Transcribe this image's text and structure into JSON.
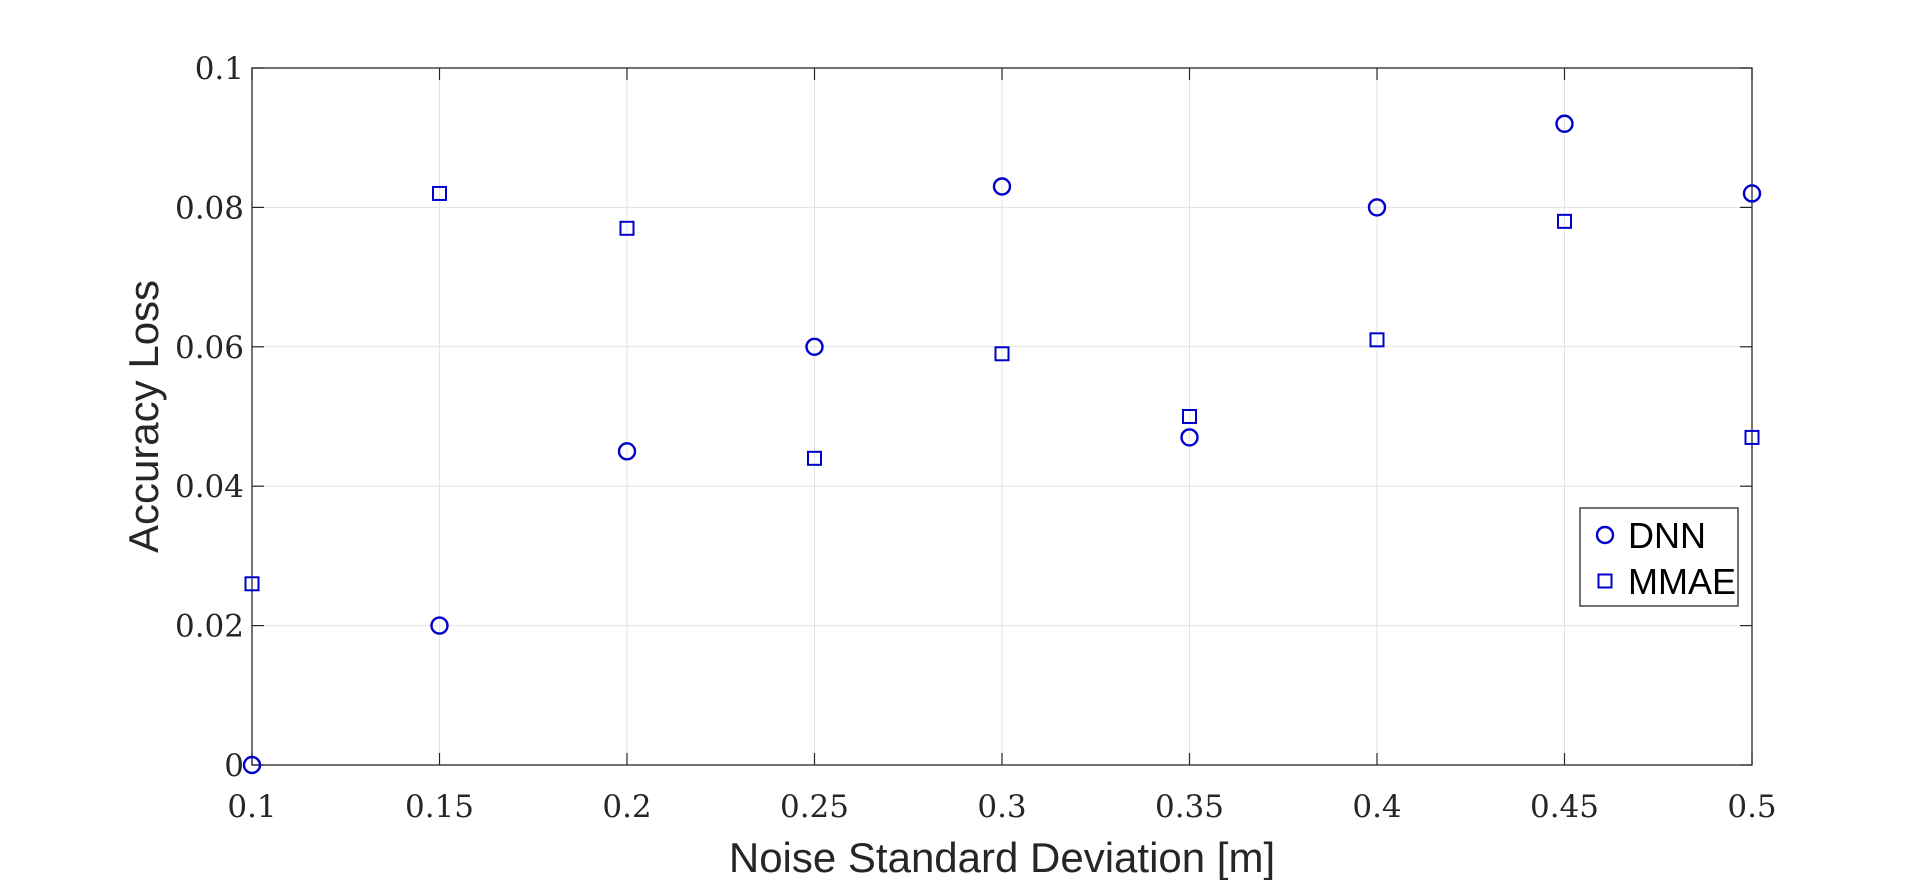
{
  "chart_data": {
    "type": "scatter",
    "xlabel": "Noise Standard Deviation [m]",
    "ylabel": "Accuracy Loss",
    "xlim": [
      0.1,
      0.5
    ],
    "ylim": [
      0,
      0.1
    ],
    "x_ticks": [
      0.1,
      0.15,
      0.2,
      0.25,
      0.3,
      0.35,
      0.4,
      0.45,
      0.5
    ],
    "x_tick_labels": [
      "0.1",
      "0.15",
      "0.2",
      "0.25",
      "0.3",
      "0.35",
      "0.4",
      "0.45",
      "0.5"
    ],
    "y_ticks": [
      0,
      0.02,
      0.04,
      0.06,
      0.08,
      0.1
    ],
    "y_tick_labels": [
      "0",
      "0.02",
      "0.04",
      "0.06",
      "0.08",
      "0.1"
    ],
    "grid": true,
    "legend_position": "right",
    "series": [
      {
        "name": "DNN",
        "marker": "circle",
        "color": "#0000cc",
        "x": [
          0.1,
          0.15,
          0.2,
          0.25,
          0.3,
          0.35,
          0.4,
          0.45,
          0.5
        ],
        "y": [
          0.0,
          0.02,
          0.045,
          0.06,
          0.083,
          0.047,
          0.08,
          0.092,
          0.082
        ]
      },
      {
        "name": "MMAE",
        "marker": "square",
        "color": "#0000cc",
        "x": [
          0.1,
          0.15,
          0.2,
          0.25,
          0.3,
          0.35,
          0.4,
          0.45,
          0.5
        ],
        "y": [
          0.026,
          0.082,
          0.077,
          0.044,
          0.059,
          0.05,
          0.061,
          0.078,
          0.047
        ]
      }
    ]
  }
}
